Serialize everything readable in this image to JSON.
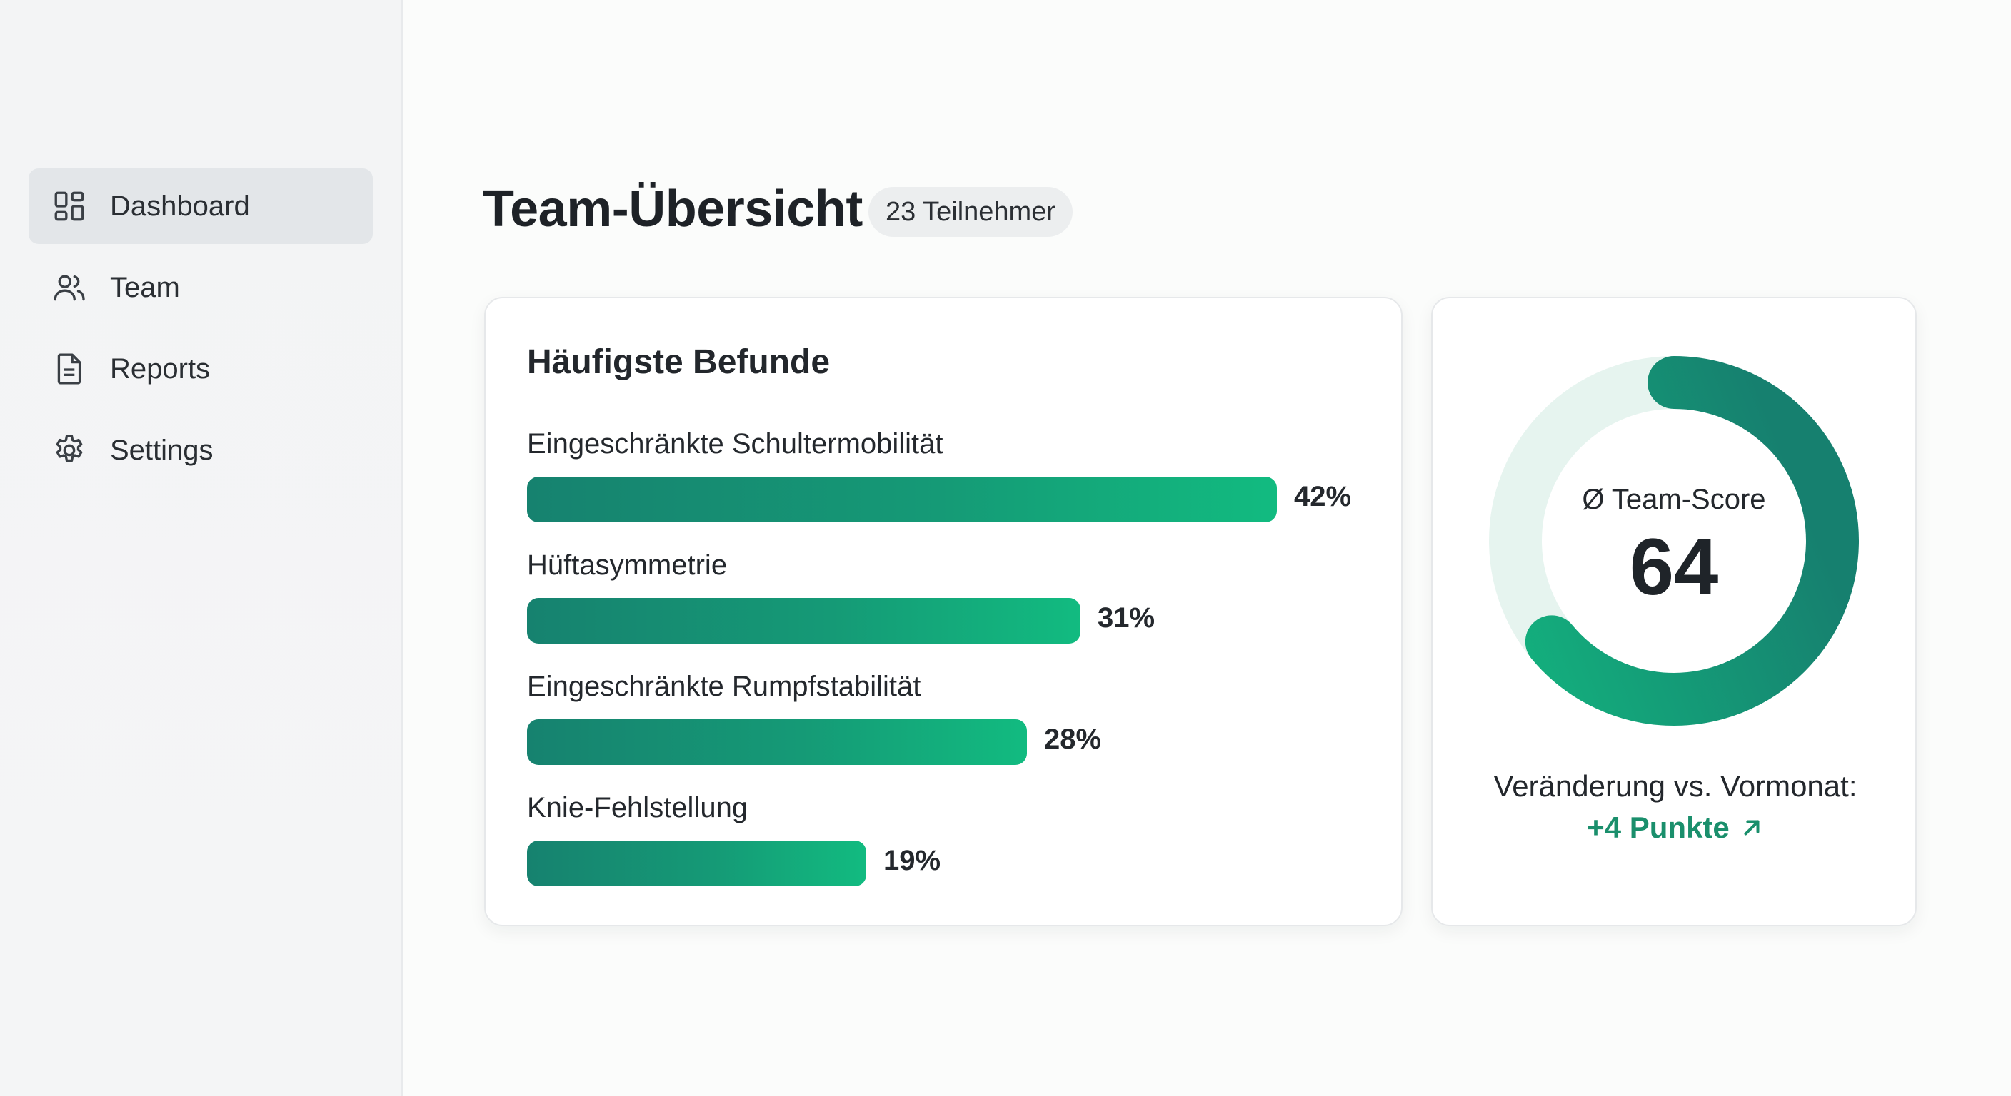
{
  "sidebar": {
    "items": [
      {
        "label": "Dashboard",
        "icon": "dashboard-grid-icon",
        "active": true
      },
      {
        "label": "Team",
        "icon": "users-icon",
        "active": false
      },
      {
        "label": "Reports",
        "icon": "document-icon",
        "active": false
      },
      {
        "label": "Settings",
        "icon": "gear-icon",
        "active": false
      }
    ]
  },
  "header": {
    "title": "Team-Übersicht",
    "badge": "23 Teilnehmer"
  },
  "findings": {
    "title": "Häufigste Befunde",
    "items": [
      {
        "label": "Eingeschränkte Schultermobilität",
        "percent": 42,
        "display": "42%"
      },
      {
        "label": "Hüftasymmetrie",
        "percent": 31,
        "display": "31%"
      },
      {
        "label": "Eingeschränkte Rumpfstabilität",
        "percent": 28,
        "display": "28%"
      },
      {
        "label": "Knie-Fehlstellung",
        "percent": 19,
        "display": "19%"
      }
    ]
  },
  "score": {
    "label": "Ø Team-Score",
    "value": 64,
    "value_text": "64",
    "change_label": "Veränderung vs. Vormonat:",
    "change_value": "+4 Punkte",
    "change_icon": "arrow-up-right-icon"
  },
  "colors": {
    "accent": "#15a078",
    "accent_dark": "#16826f",
    "accent_light": "#12bb80",
    "ring_track": "#e6f4ef",
    "change_text": "#1a8f6c",
    "active_nav": "#e3e6e9"
  }
}
